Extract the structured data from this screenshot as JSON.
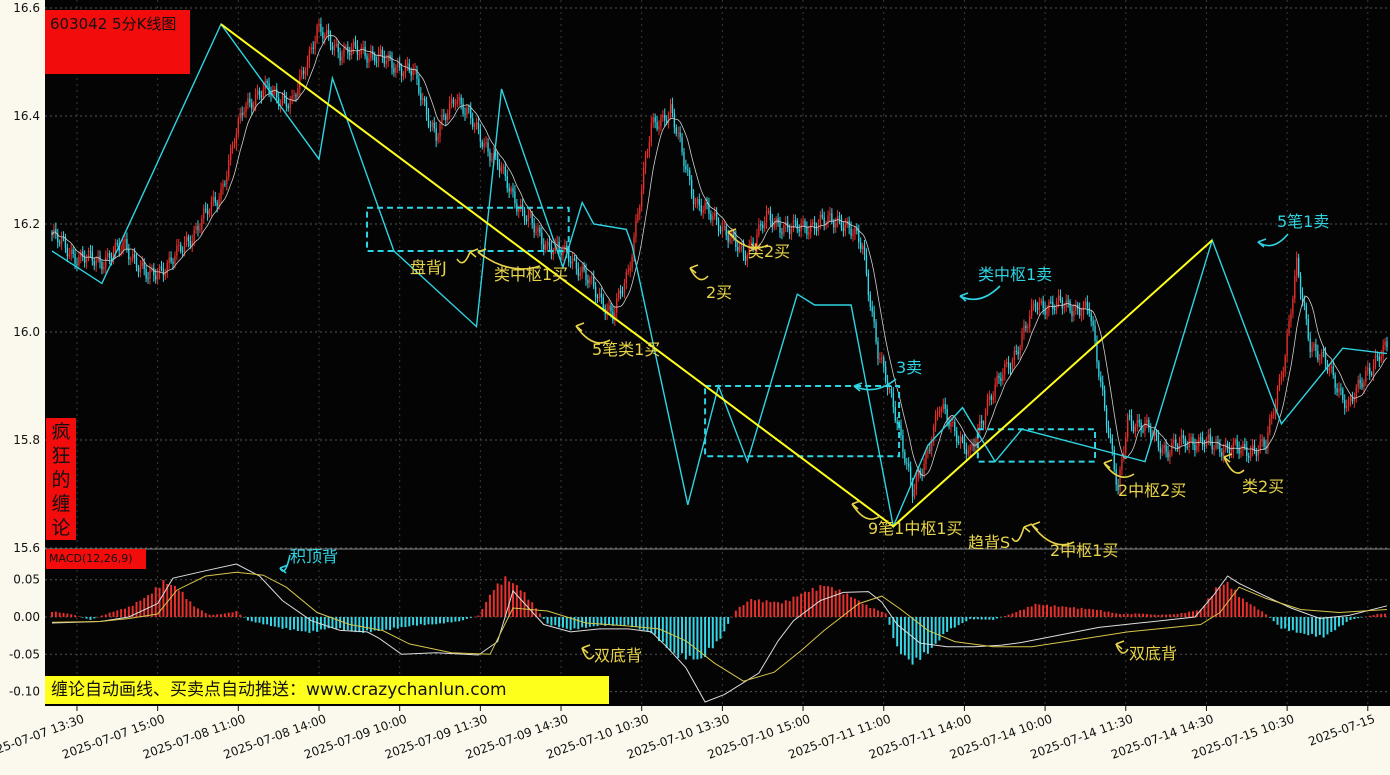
{
  "window": {
    "title": "603042 5分K线图",
    "side_label": [
      "疯",
      "狂",
      "的",
      "缠",
      "论"
    ],
    "banner": "缠论自动画线、买卖点自动推送：www.crazychanlun.com"
  },
  "colors": {
    "background": "#040404",
    "bull": "#e8302c",
    "bear": "#35d6e6",
    "stroke_line": "#2ed4e2",
    "segment_line": "#ffff1c",
    "annotation_yellow": "#e8d44a",
    "annotation_cyan": "#2ed4e2",
    "macd_diff": "#dddddd",
    "macd_dea": "#d7c54a"
  },
  "chart_data": [
    {
      "type": "candlestick",
      "title": "603042 5分K线图",
      "y_ticks": [
        "16.6",
        "16.4",
        "16.2",
        "16.0",
        "15.8",
        "15.6"
      ],
      "ylim": [
        15.6,
        16.6
      ],
      "x_ticks": [
        "2025-07-07 13:30",
        "2025-07-07 15:00",
        "2025-07-08 11:00",
        "2025-07-08 14:00",
        "2025-07-09 10:00",
        "2025-07-09 11:30",
        "2025-07-09 14:30",
        "2025-07-10 10:30",
        "2025-07-10 13:30",
        "2025-07-10 15:00",
        "2025-07-11 11:00",
        "2025-07-11 14:00",
        "2025-07-14 10:00",
        "2025-07-14 11:30",
        "2025-07-14 14:30",
        "2025-07-15 10:30",
        "2025-07-15"
      ],
      "price_path": [
        [
          0,
          16.18
        ],
        [
          12,
          16.14
        ],
        [
          25,
          16.13
        ],
        [
          38,
          16.16
        ],
        [
          50,
          16.1
        ],
        [
          62,
          16.13
        ],
        [
          75,
          16.19
        ],
        [
          88,
          16.26
        ],
        [
          100,
          16.42
        ],
        [
          112,
          16.45
        ],
        [
          125,
          16.42
        ],
        [
          138,
          16.56
        ],
        [
          150,
          16.52
        ],
        [
          162,
          16.52
        ],
        [
          175,
          16.5
        ],
        [
          188,
          16.48
        ],
        [
          200,
          16.36
        ],
        [
          210,
          16.44
        ],
        [
          220,
          16.38
        ],
        [
          232,
          16.31
        ],
        [
          245,
          16.22
        ],
        [
          258,
          16.16
        ],
        [
          270,
          16.14
        ],
        [
          282,
          16.08
        ],
        [
          292,
          16.03
        ],
        [
          300,
          16.11
        ],
        [
          312,
          16.38
        ],
        [
          322,
          16.41
        ],
        [
          335,
          16.24
        ],
        [
          348,
          16.2
        ],
        [
          360,
          16.14
        ],
        [
          372,
          16.21
        ],
        [
          385,
          16.19
        ],
        [
          398,
          16.2
        ],
        [
          410,
          16.21
        ],
        [
          422,
          16.16
        ],
        [
          430,
          15.96
        ],
        [
          440,
          15.84
        ],
        [
          448,
          15.7
        ],
        [
          455,
          15.77
        ],
        [
          462,
          15.86
        ],
        [
          470,
          15.82
        ],
        [
          478,
          15.77
        ],
        [
          488,
          15.88
        ],
        [
          500,
          15.95
        ],
        [
          512,
          16.05
        ],
        [
          525,
          16.05
        ],
        [
          540,
          16.04
        ],
        [
          550,
          15.82
        ],
        [
          555,
          15.7
        ],
        [
          560,
          15.84
        ],
        [
          570,
          15.82
        ],
        [
          580,
          15.78
        ],
        [
          592,
          15.8
        ],
        [
          605,
          15.79
        ],
        [
          620,
          15.78
        ],
        [
          632,
          15.79
        ],
        [
          642,
          15.96
        ],
        [
          648,
          16.12
        ],
        [
          655,
          15.98
        ],
        [
          665,
          15.93
        ],
        [
          675,
          15.86
        ],
        [
          685,
          15.93
        ],
        [
          695,
          15.97
        ]
      ],
      "candle_count": 696,
      "bi_strokes": [
        [
          0,
          16.15
        ],
        [
          26,
          16.09
        ],
        [
          88,
          16.57
        ],
        [
          139,
          16.32
        ],
        [
          146,
          16.47
        ],
        [
          178,
          16.15
        ],
        [
          221,
          16.01
        ],
        [
          234,
          16.45
        ],
        [
          266,
          16.12
        ],
        [
          276,
          16.24
        ],
        [
          282,
          16.2
        ],
        [
          299,
          16.19
        ],
        [
          302,
          16.16
        ],
        [
          331,
          15.68
        ],
        [
          347,
          15.9
        ],
        [
          362,
          15.76
        ],
        [
          388,
          16.07
        ],
        [
          397,
          16.05
        ],
        [
          416,
          16.05
        ],
        [
          438,
          15.64
        ],
        [
          456,
          15.79
        ],
        [
          474,
          15.86
        ],
        [
          491,
          15.76
        ],
        [
          505,
          15.82
        ],
        [
          569,
          15.76
        ],
        [
          604,
          16.17
        ],
        [
          640,
          15.83
        ],
        [
          672,
          15.97
        ],
        [
          695,
          15.96
        ]
      ],
      "segments": [
        [
          88,
          16.57
        ],
        [
          438,
          15.64
        ],
        [
          604,
          16.17
        ]
      ],
      "pivot_boxes": [
        {
          "from": 164,
          "to": 269,
          "low": 16.15,
          "high": 16.23
        },
        {
          "from": 340,
          "to": 441,
          "low": 15.77,
          "high": 15.9
        },
        {
          "from": 482,
          "to": 543,
          "low": 15.76,
          "high": 15.82
        }
      ],
      "annotations": [
        {
          "text": "盘背J",
          "color": "yellow"
        },
        {
          "text": "类中枢1买",
          "color": "yellow"
        },
        {
          "text": "5笔类1买",
          "color": "yellow"
        },
        {
          "text": "2买",
          "color": "yellow"
        },
        {
          "text": "类2买",
          "color": "yellow"
        },
        {
          "text": "3卖",
          "color": "cyan"
        },
        {
          "text": "9笔1中枢1买",
          "color": "yellow"
        },
        {
          "text": "类中枢1卖",
          "color": "cyan"
        },
        {
          "text": "趋背S",
          "color": "yellow"
        },
        {
          "text": "2中枢1买",
          "color": "yellow"
        },
        {
          "text": "2中枢2买",
          "color": "yellow"
        },
        {
          "text": "类2买",
          "color": "yellow"
        },
        {
          "text": "5笔1卖",
          "color": "cyan"
        }
      ]
    },
    {
      "type": "bar",
      "title": "MACD(12,26,9)",
      "y_ticks": [
        "0.05",
        "0.00",
        "-0.05",
        "-0.10"
      ],
      "ylim": [
        -0.12,
        0.07
      ],
      "hist_path": [
        [
          0,
          0.008
        ],
        [
          10,
          0.004
        ],
        [
          20,
          -0.004
        ],
        [
          30,
          0.006
        ],
        [
          40,
          0.014
        ],
        [
          50,
          0.03
        ],
        [
          58,
          0.05
        ],
        [
          66,
          0.04
        ],
        [
          74,
          0.015
        ],
        [
          82,
          0.003
        ],
        [
          88,
          0.004
        ],
        [
          96,
          0.008
        ],
        [
          102,
          -0.005
        ],
        [
          120,
          -0.016
        ],
        [
          135,
          -0.022
        ],
        [
          145,
          -0.015
        ],
        [
          160,
          -0.022
        ],
        [
          175,
          -0.018
        ],
        [
          188,
          -0.012
        ],
        [
          200,
          -0.01
        ],
        [
          212,
          -0.006
        ],
        [
          222,
          0.002
        ],
        [
          230,
          0.04
        ],
        [
          236,
          0.055
        ],
        [
          244,
          0.04
        ],
        [
          250,
          0.02
        ],
        [
          258,
          -0.01
        ],
        [
          270,
          -0.018
        ],
        [
          285,
          -0.012
        ],
        [
          300,
          -0.012
        ],
        [
          312,
          -0.022
        ],
        [
          325,
          -0.055
        ],
        [
          338,
          -0.06
        ],
        [
          348,
          -0.03
        ],
        [
          356,
          0.01
        ],
        [
          364,
          0.025
        ],
        [
          380,
          0.02
        ],
        [
          392,
          0.035
        ],
        [
          402,
          0.045
        ],
        [
          412,
          0.035
        ],
        [
          425,
          0.015
        ],
        [
          434,
          0.005
        ],
        [
          440,
          -0.045
        ],
        [
          448,
          -0.065
        ],
        [
          456,
          -0.05
        ],
        [
          466,
          -0.02
        ],
        [
          478,
          -0.003
        ],
        [
          490,
          -0.004
        ],
        [
          500,
          0.005
        ],
        [
          512,
          0.018
        ],
        [
          525,
          0.015
        ],
        [
          545,
          0.01
        ],
        [
          556,
          0.004
        ],
        [
          566,
          0.005
        ],
        [
          575,
          0.003
        ],
        [
          585,
          0.004
        ],
        [
          598,
          0.01
        ],
        [
          606,
          0.04
        ],
        [
          612,
          0.048
        ],
        [
          620,
          0.025
        ],
        [
          632,
          0.004
        ],
        [
          640,
          -0.016
        ],
        [
          652,
          -0.024
        ],
        [
          662,
          -0.028
        ],
        [
          668,
          -0.018
        ],
        [
          676,
          -0.004
        ],
        [
          690,
          0.004
        ],
        [
          695,
          0.005
        ]
      ],
      "diff_path": [
        [
          0,
          -0.008
        ],
        [
          25,
          -0.006
        ],
        [
          40,
          0.0
        ],
        [
          55,
          0.018
        ],
        [
          63,
          0.052
        ],
        [
          80,
          0.062
        ],
        [
          96,
          0.071
        ],
        [
          108,
          0.055
        ],
        [
          120,
          0.022
        ],
        [
          135,
          -0.005
        ],
        [
          150,
          -0.018
        ],
        [
          164,
          -0.02
        ],
        [
          170,
          -0.028
        ],
        [
          182,
          -0.05
        ],
        [
          200,
          -0.048
        ],
        [
          222,
          -0.051
        ],
        [
          232,
          -0.033
        ],
        [
          240,
          0.035
        ],
        [
          256,
          -0.01
        ],
        [
          270,
          -0.02
        ],
        [
          285,
          -0.016
        ],
        [
          300,
          -0.016
        ],
        [
          312,
          -0.02
        ],
        [
          320,
          -0.04
        ],
        [
          330,
          -0.068
        ],
        [
          340,
          -0.114
        ],
        [
          350,
          -0.104
        ],
        [
          368,
          -0.075
        ],
        [
          378,
          -0.032
        ],
        [
          386,
          -0.005
        ],
        [
          400,
          0.022
        ],
        [
          412,
          0.033
        ],
        [
          425,
          0.034
        ],
        [
          432,
          0.02
        ],
        [
          440,
          -0.01
        ],
        [
          452,
          -0.035
        ],
        [
          466,
          -0.04
        ],
        [
          480,
          -0.04
        ],
        [
          494,
          -0.038
        ],
        [
          505,
          -0.034
        ],
        [
          525,
          -0.024
        ],
        [
          545,
          -0.014
        ],
        [
          570,
          -0.007
        ],
        [
          595,
          0.0
        ],
        [
          605,
          0.03
        ],
        [
          612,
          0.055
        ],
        [
          618,
          0.045
        ],
        [
          630,
          0.03
        ],
        [
          645,
          0.012
        ],
        [
          660,
          -0.002
        ],
        [
          675,
          0.002
        ],
        [
          695,
          0.015
        ]
      ],
      "dea_path": [
        [
          0,
          -0.007
        ],
        [
          25,
          -0.006
        ],
        [
          40,
          -0.002
        ],
        [
          55,
          0.004
        ],
        [
          65,
          0.036
        ],
        [
          80,
          0.055
        ],
        [
          96,
          0.06
        ],
        [
          110,
          0.056
        ],
        [
          122,
          0.04
        ],
        [
          138,
          0.006
        ],
        [
          155,
          -0.01
        ],
        [
          172,
          -0.018
        ],
        [
          186,
          -0.036
        ],
        [
          208,
          -0.048
        ],
        [
          228,
          -0.05
        ],
        [
          240,
          0.012
        ],
        [
          258,
          0.008
        ],
        [
          278,
          -0.008
        ],
        [
          300,
          -0.012
        ],
        [
          316,
          -0.016
        ],
        [
          330,
          -0.032
        ],
        [
          345,
          -0.062
        ],
        [
          360,
          -0.086
        ],
        [
          376,
          -0.074
        ],
        [
          390,
          -0.045
        ],
        [
          402,
          -0.018
        ],
        [
          420,
          0.018
        ],
        [
          432,
          0.028
        ],
        [
          442,
          0.01
        ],
        [
          456,
          -0.018
        ],
        [
          470,
          -0.033
        ],
        [
          490,
          -0.04
        ],
        [
          510,
          -0.04
        ],
        [
          530,
          -0.032
        ],
        [
          560,
          -0.02
        ],
        [
          598,
          -0.01
        ],
        [
          608,
          0.006
        ],
        [
          618,
          0.04
        ],
        [
          632,
          0.025
        ],
        [
          650,
          0.01
        ],
        [
          670,
          0.006
        ],
        [
          695,
          0.01
        ]
      ],
      "annotations": [
        {
          "text": "积顶背",
          "color": "cyan"
        },
        {
          "text": "双底背",
          "color": "yellow"
        },
        {
          "text": "双底背",
          "color": "yellow"
        }
      ]
    }
  ]
}
